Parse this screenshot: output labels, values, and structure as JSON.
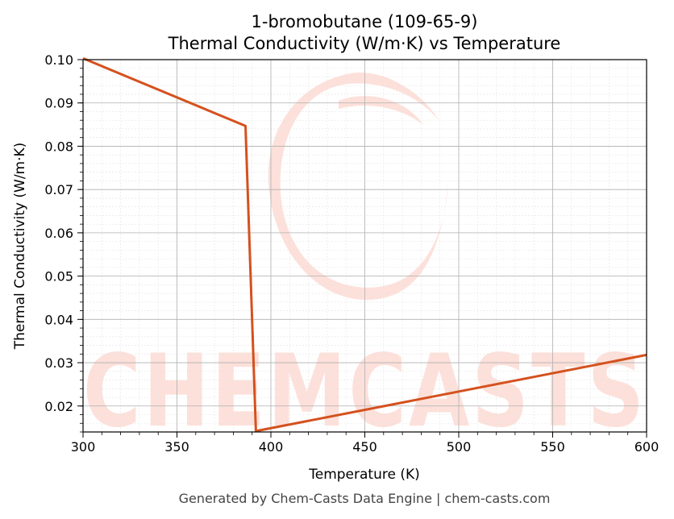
{
  "chart_data": {
    "type": "line",
    "title": "1-bromobutane (109-65-9)",
    "subtitle": "Thermal Conductivity (W/m·K) vs Temperature",
    "xlabel": "Temperature (K)",
    "ylabel": "Thermal Conductivity (W/m·K)",
    "xlim": [
      300,
      600
    ],
    "ylim": [
      0.014,
      0.1
    ],
    "xticks": [
      300,
      350,
      400,
      450,
      500,
      550,
      600
    ],
    "yticks": [
      0.02,
      0.03,
      0.04,
      0.05,
      0.06,
      0.07,
      0.08,
      0.09,
      0.1
    ],
    "xtick_labels": [
      "300",
      "350",
      "400",
      "450",
      "500",
      "550",
      "600"
    ],
    "ytick_labels": [
      "0.02",
      "0.03",
      "0.04",
      "0.05",
      "0.06",
      "0.07",
      "0.08",
      "0.09",
      "0.10"
    ],
    "grid": true,
    "series": [
      {
        "color": "#d4511e",
        "x": [
          300,
          386.5,
          392,
          600
        ],
        "y": [
          0.1003,
          0.0847,
          0.0142,
          0.0318
        ]
      }
    ]
  },
  "watermark": {
    "text": "CHEMCASTS",
    "color": "#fde0da"
  },
  "footer": "Generated by Chem-Casts Data Engine | chem-casts.com"
}
